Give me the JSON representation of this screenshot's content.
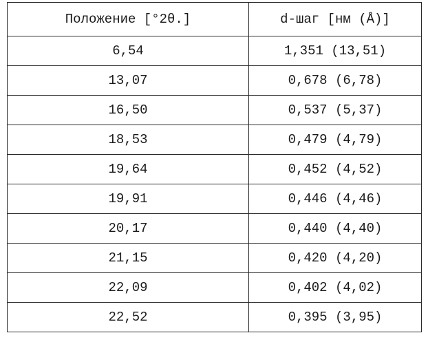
{
  "table": {
    "headers": [
      "Положение [°2θ.]",
      "d-шаг [нм (Å)]"
    ],
    "rows": [
      [
        "6,54",
        "1,351 (13,51)"
      ],
      [
        "13,07",
        "0,678 (6,78)"
      ],
      [
        "16,50",
        "0,537 (5,37)"
      ],
      [
        "18,53",
        "0,479 (4,79)"
      ],
      [
        "19,64",
        "0,452 (4,52)"
      ],
      [
        "19,91",
        "0,446 (4,46)"
      ],
      [
        "20,17",
        "0,440 (4,40)"
      ],
      [
        "21,15",
        "0,420 (4,20)"
      ],
      [
        "22,09",
        "0,402 (4,02)"
      ],
      [
        "22,52",
        "0,395 (3,95)"
      ]
    ]
  }
}
